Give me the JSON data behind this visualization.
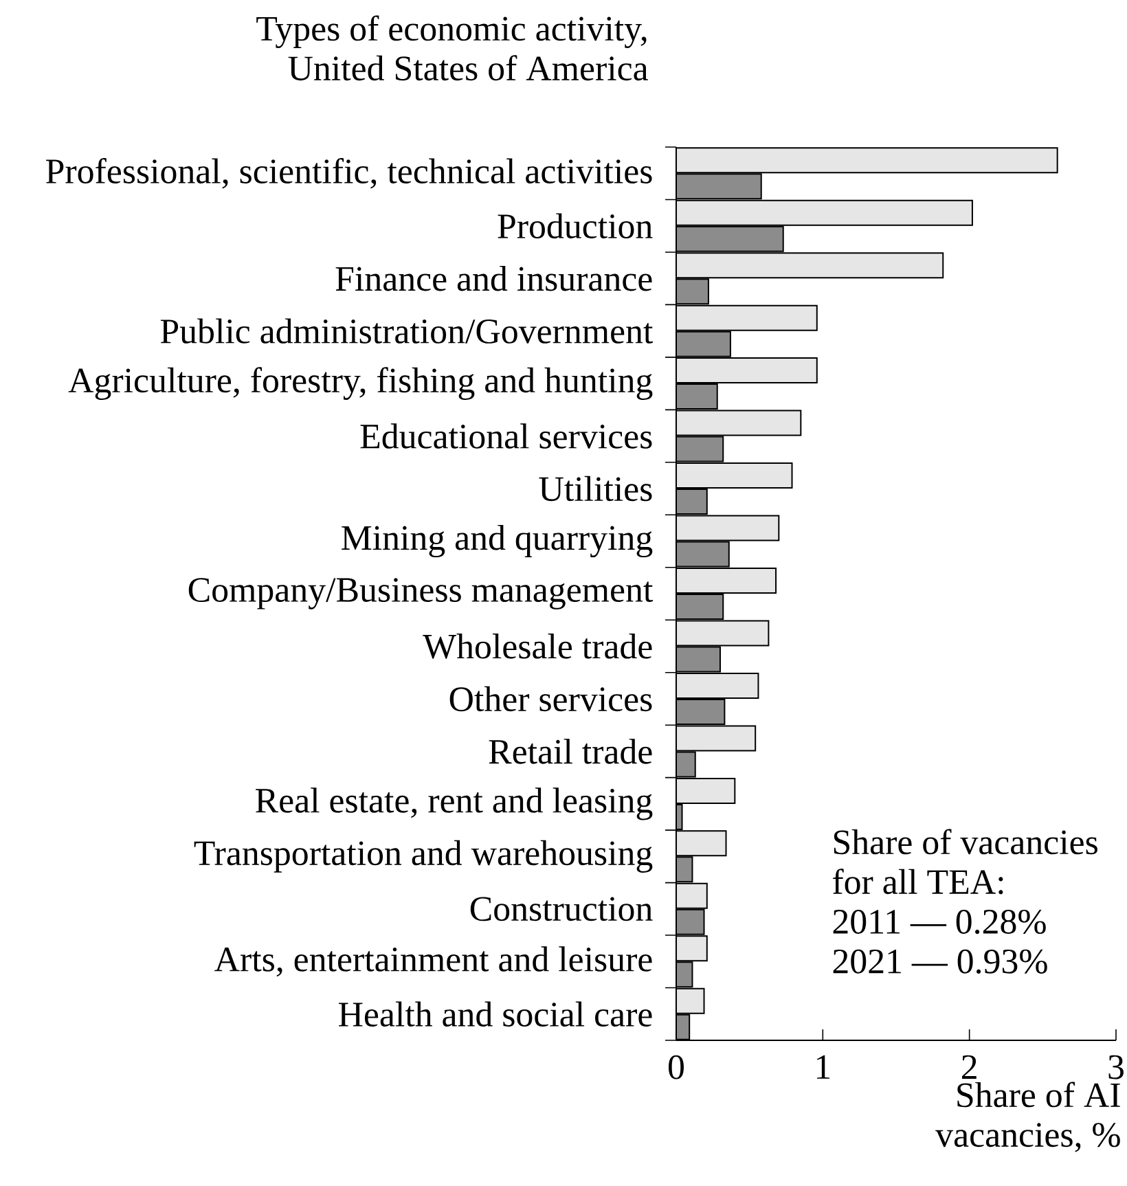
{
  "chart_data": {
    "type": "bar",
    "orientation": "horizontal",
    "ylabel": "Types of economic activity, United States of America",
    "xlabel": "Share of AI vacancies, %",
    "categories": [
      "Professional, scientific, technical activities",
      "Production",
      "Finance and insurance",
      "Public administration/Government",
      "Agriculture, forestry, fishing and hunting",
      "Educational services",
      "Utilities",
      "Mining and quarrying",
      "Company/Business management",
      "Wholesale trade",
      "Other services",
      "Retail trade",
      "Real estate, rent and leasing",
      "Transportation and warehousing",
      "Construction",
      "Arts, entertainment and leisure",
      "Health and social care"
    ],
    "series": [
      {
        "color": "#e6e6e6",
        "values": [
          2.6,
          2.02,
          1.82,
          0.96,
          0.96,
          0.85,
          0.79,
          0.7,
          0.68,
          0.63,
          0.56,
          0.54,
          0.4,
          0.34,
          0.21,
          0.21,
          0.19
        ]
      },
      {
        "color": "#8c8c8c",
        "values": [
          0.58,
          0.73,
          0.22,
          0.37,
          0.28,
          0.32,
          0.21,
          0.36,
          0.32,
          0.3,
          0.33,
          0.13,
          0.04,
          0.11,
          0.19,
          0.11,
          0.09
        ]
      }
    ],
    "xlim": [
      0,
      3
    ],
    "xticks": [
      0,
      1,
      2,
      3
    ],
    "annotations": [
      "Share of vacancies for all TEA:",
      "2011 — 0.28%",
      "2021 — 0.93%"
    ]
  }
}
